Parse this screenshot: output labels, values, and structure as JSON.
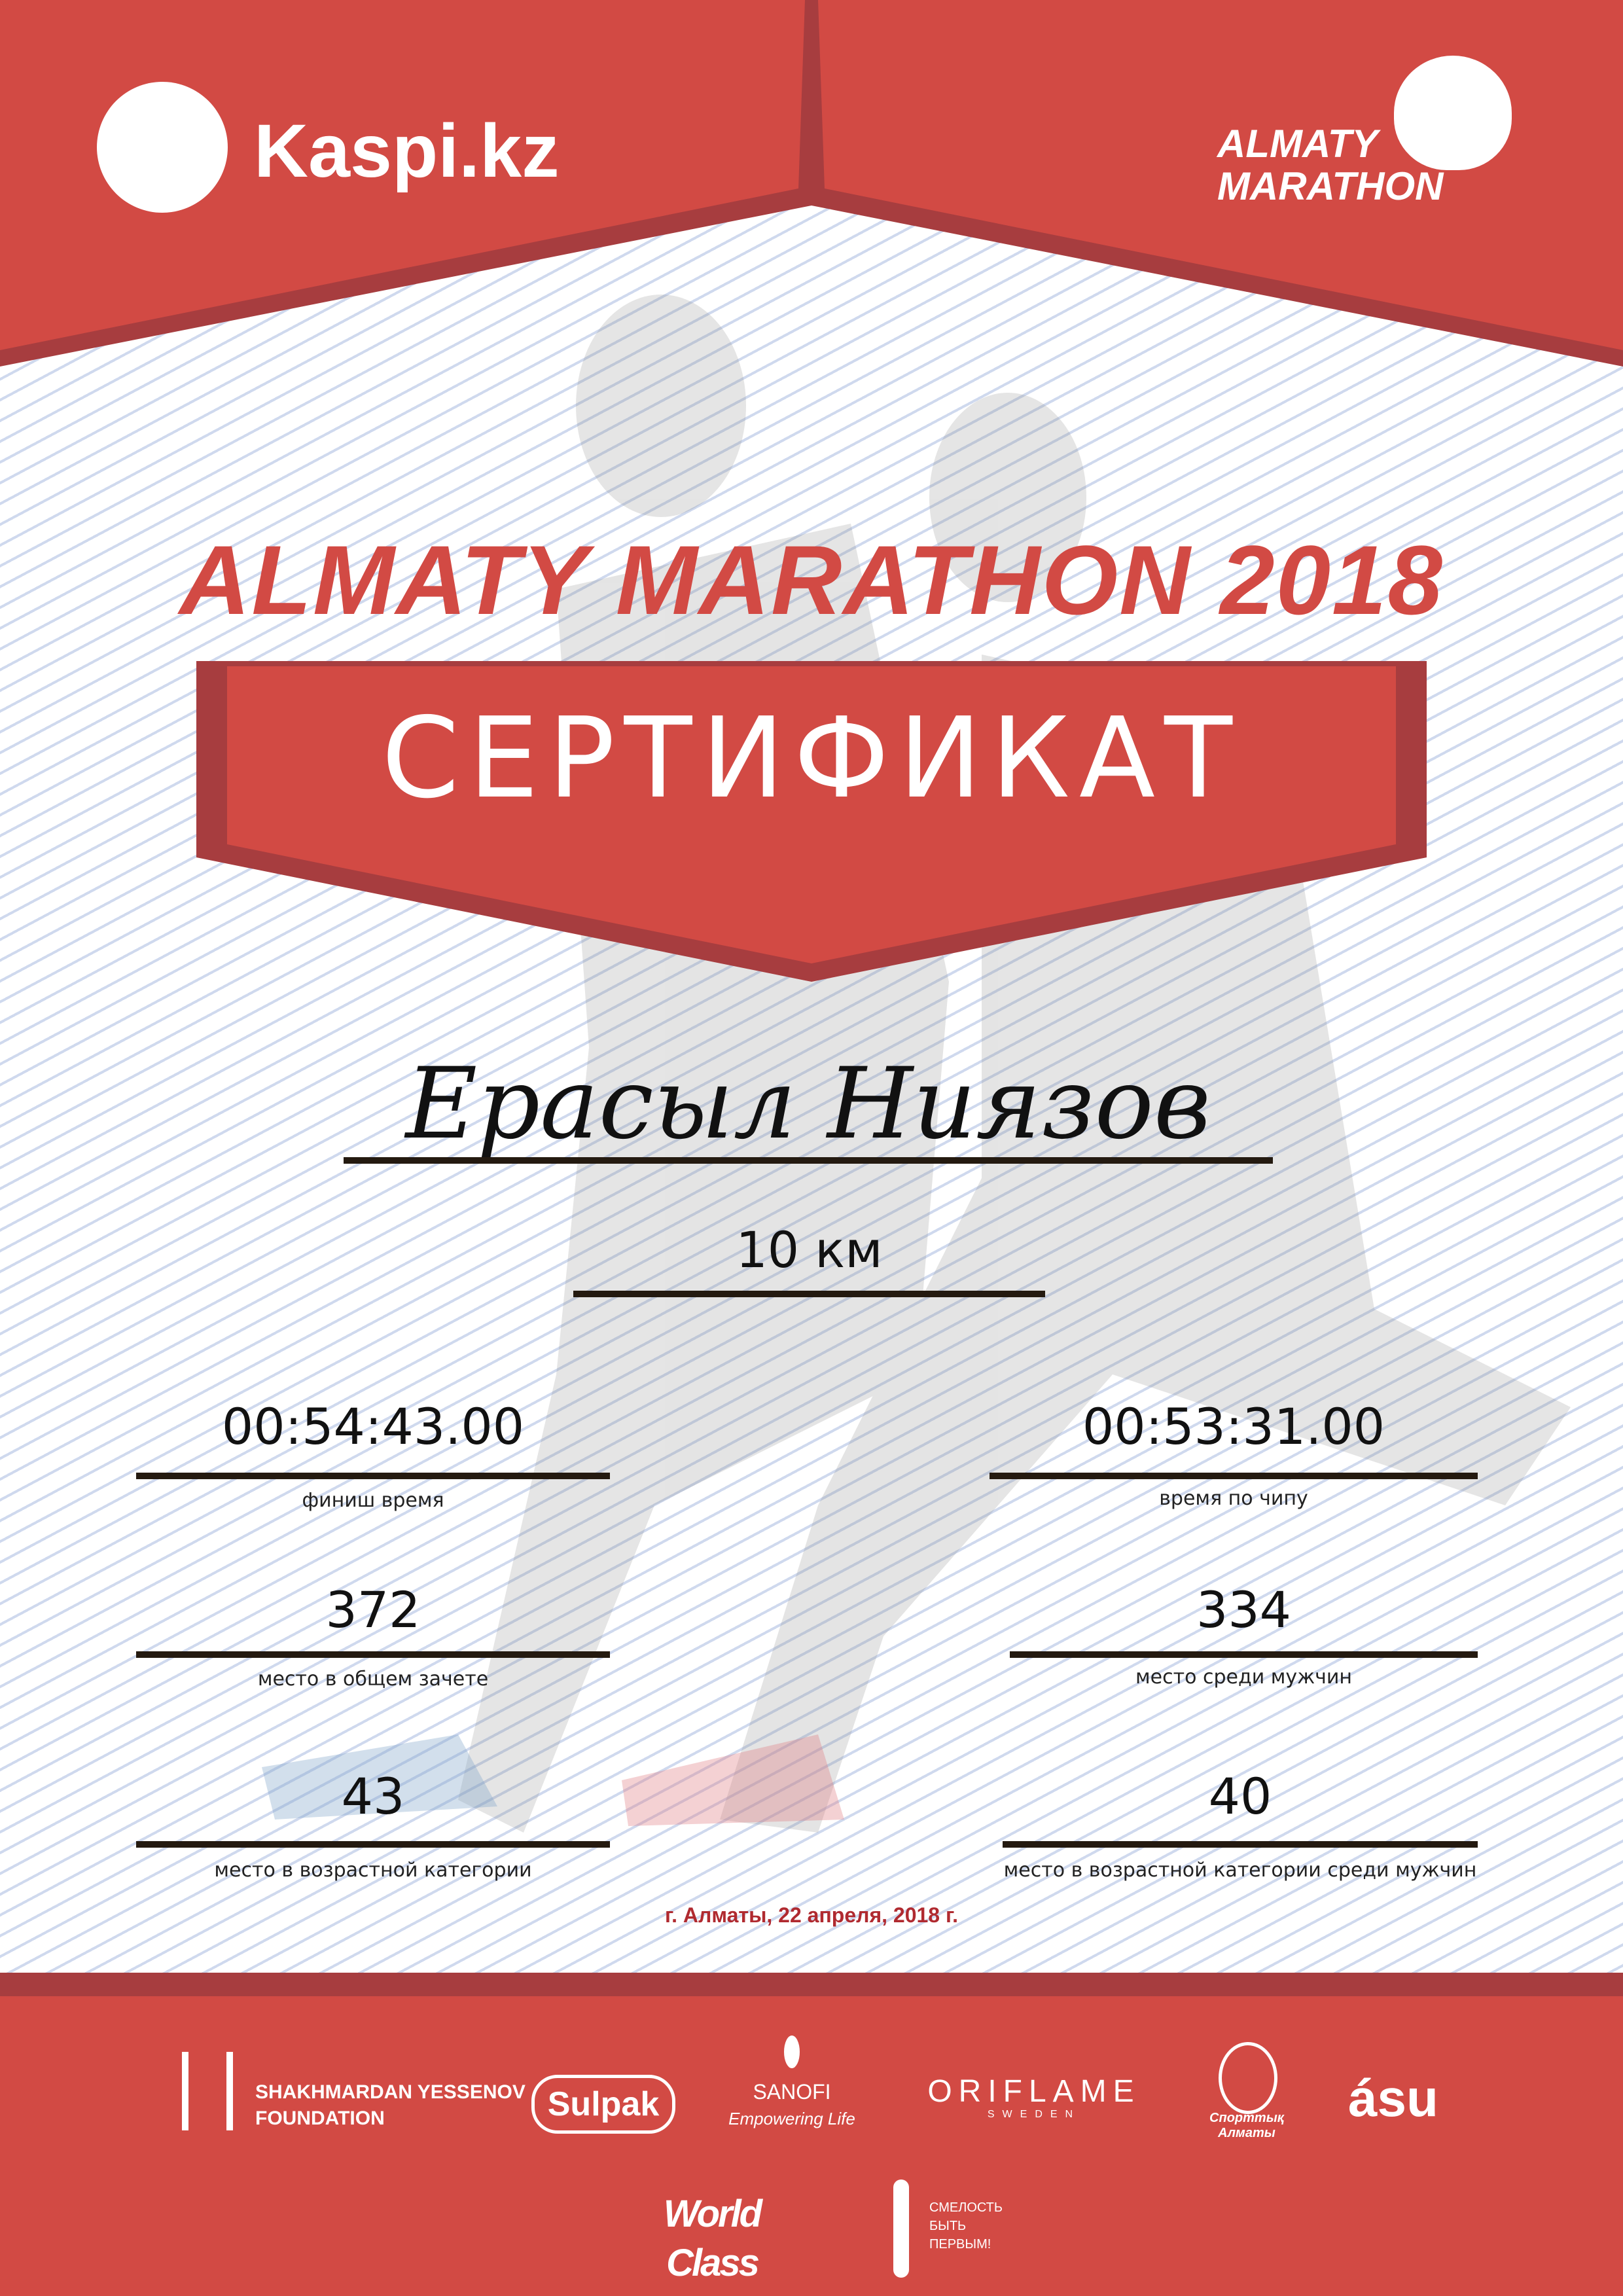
{
  "colors": {
    "brand_red": "#d24a44",
    "dark_red": "#a73d3f",
    "date_red": "#b02a30",
    "line_blue": "#cfd9ee"
  },
  "header": {
    "left_logo": "Kaspi.kz",
    "right_logo_line1": "ALMATY",
    "right_logo_line2": "MARATHON"
  },
  "title": "ALMATY MARATHON 2018",
  "banner": "СЕРТИФИКАТ",
  "participant": {
    "name": "Ерасыл Ниязов",
    "distance": "10 км"
  },
  "results": [
    {
      "value": "00:54:43.00",
      "label": "финиш время"
    },
    {
      "value": "00:53:31.00",
      "label": "время по чипу"
    },
    {
      "value": "372",
      "label": "место в общем зачете"
    },
    {
      "value": "334",
      "label": "место среди мужчин"
    },
    {
      "value": "43",
      "label": "место в возрастной категории"
    },
    {
      "value": "40",
      "label": "место в возрастной категории среди мужчин"
    }
  ],
  "date": "г. Алматы, 22 апреля, 2018 г.",
  "sponsors": {
    "yessenov_1": "SHAKHMARDAN YESSENOV",
    "yessenov_2": "FOUNDATION",
    "sulpak": "Sulpak",
    "sanofi": "SANOFI",
    "sanofi_tag": "Empowering Life",
    "oriflame": "ORIFLAME",
    "oriflame_sub": "SWEDEN",
    "sport_almaty": "Спорттық Алматы",
    "asu": "ásu",
    "worldclass": "World Class",
    "fund_1": "СМЕЛОСТЬ",
    "fund_2": "БЫТЬ",
    "fund_3": "ПЕРВЫМ!"
  }
}
